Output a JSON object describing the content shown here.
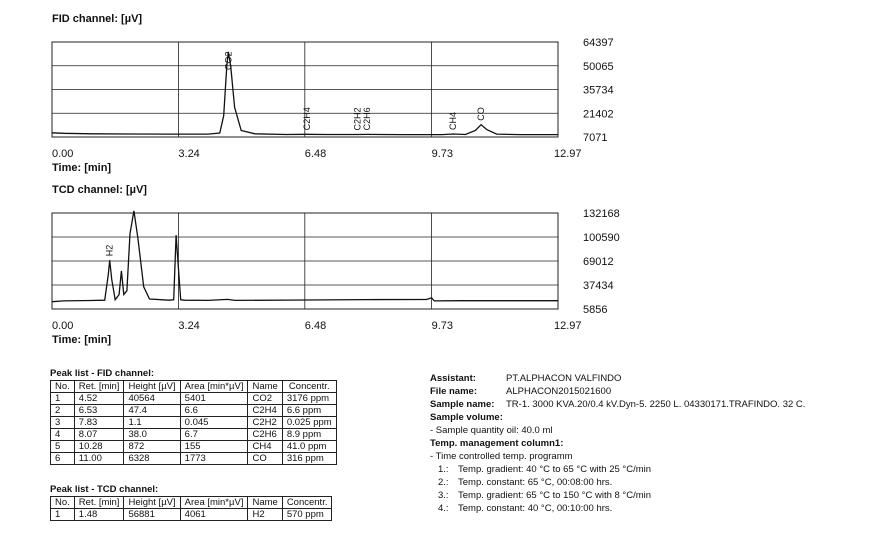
{
  "chart_data": [
    {
      "type": "line",
      "title": "FID channel:  [µV]",
      "x_label": "Time:  [min]",
      "color": "#111",
      "grid": true,
      "xlim": [
        0,
        12.97
      ],
      "xticks": [
        {
          "value": 0,
          "label": "0.00"
        },
        3.24,
        6.48,
        9.73,
        12.97
      ],
      "ylim": [
        7071,
        64397
      ],
      "yticks": [
        64397,
        50065,
        35734,
        21402,
        7071
      ],
      "x": [
        0,
        0.3,
        1,
        2,
        3,
        4.0,
        4.3,
        4.4,
        4.48,
        4.52,
        4.58,
        4.68,
        4.85,
        5.2,
        6,
        6.53,
        7,
        7.83,
        8.07,
        9,
        10.0,
        10.28,
        10.6,
        10.85,
        11.0,
        11.15,
        11.4,
        12,
        12.97
      ],
      "values": [
        9600,
        9300,
        9000,
        8900,
        8800,
        8800,
        9500,
        20000,
        50000,
        58500,
        50000,
        25000,
        11000,
        9000,
        8600,
        8700,
        8600,
        8600,
        8650,
        8500,
        8500,
        8900,
        8600,
        11000,
        14500,
        11500,
        8800,
        8500,
        8500
      ],
      "annotations": [
        {
          "x": 4.52,
          "text": "CO2"
        },
        {
          "x": 6.53,
          "text": "C2H4"
        },
        {
          "x": 7.83,
          "text": "C2H2"
        },
        {
          "x": 8.07,
          "text": "C2H6"
        },
        {
          "x": 10.28,
          "text": "CH4"
        },
        {
          "x": 11.0,
          "text": "CO"
        }
      ]
    },
    {
      "type": "line",
      "title": "TCD channel:  [µV]",
      "x_label": "Time:  [min]",
      "color": "#111",
      "grid": true,
      "xlim": [
        0,
        12.97
      ],
      "xticks": [
        {
          "value": 0,
          "label": "0.00"
        },
        3.24,
        6.48,
        9.73,
        12.97
      ],
      "ylim": [
        5856,
        132168
      ],
      "yticks": [
        132168,
        100590,
        69012,
        37434,
        5856
      ],
      "x": [
        0,
        0.3,
        1.0,
        1.35,
        1.44,
        1.48,
        1.53,
        1.62,
        1.72,
        1.78,
        1.84,
        1.92,
        2.0,
        2.1,
        2.2,
        2.35,
        2.5,
        3.0,
        3.12,
        3.18,
        3.24,
        3.3,
        3.4,
        4.0,
        4.5,
        4.7,
        6,
        8,
        9.6,
        9.73,
        9.8,
        10.5,
        12.97
      ],
      "values": [
        15500,
        16500,
        17000,
        17500,
        50000,
        70000,
        45000,
        18000,
        25000,
        56000,
        25000,
        30000,
        105000,
        135000,
        100000,
        35000,
        19000,
        17500,
        18000,
        103000,
        60000,
        18000,
        17500,
        17200,
        18500,
        17200,
        17600,
        18200,
        18300,
        20500,
        16500,
        16800,
        16800
      ],
      "annotations": [
        {
          "x": 1.48,
          "text": "H2"
        }
      ]
    }
  ],
  "fid_table": {
    "caption": "Peak list - FID channel:",
    "header": [
      "No.",
      "Ret. [min]",
      "Height [µV]",
      "Area [min*µV]",
      "Name",
      "Concentr."
    ],
    "rows": [
      [
        "1",
        "4.52",
        "40564",
        "5401",
        "CO2",
        "3176 ppm"
      ],
      [
        "2",
        "6.53",
        "47.4",
        "6.6",
        "C2H4",
        "6.6 ppm"
      ],
      [
        "3",
        "7.83",
        "1.1",
        "0.045",
        "C2H2",
        "0.025 ppm"
      ],
      [
        "4",
        "8.07",
        "38.0",
        "6.7",
        "C2H6",
        "8.9 ppm"
      ],
      [
        "5",
        "10.28",
        "872",
        "155",
        "CH4",
        "41.0 ppm"
      ],
      [
        "6",
        "11.00",
        "6328",
        "1773",
        "CO",
        "316 ppm"
      ]
    ]
  },
  "tcd_table": {
    "caption": "Peak list - TCD channel:",
    "header": [
      "No.",
      "Ret. [min]",
      "Height [µV]",
      "Area [min*µV]",
      "Name",
      "Concentr."
    ],
    "rows": [
      [
        "1",
        "1.48",
        "56881",
        "4061",
        "H2",
        "570 ppm"
      ]
    ]
  },
  "info": {
    "fields": [
      [
        "Assistant:",
        "PT.ALPHACON VALFINDO"
      ],
      [
        "File name:",
        "ALPHACON2015021600"
      ],
      [
        "Sample name:",
        "TR-1. 3000 KVA.20/0.4 kV.Dyn-5. 2250 L. 04330171.TRAFINDO.  32 C."
      ]
    ],
    "volume_heading": "Sample volume:",
    "volume_line": "-  Sample quantity oil:    40.0 ml",
    "temp_heading": "Temp. management column1:",
    "temp_line": "-  Time controlled temp. programm",
    "steps": [
      [
        "1.:",
        "Temp. gradient: 40 °C to 65 °C with 25 °C/min"
      ],
      [
        "2.:",
        "Temp. constant: 65 °C, 00:08:00 hrs."
      ],
      [
        "3.:",
        "Temp. gradient: 65 °C to 150 °C with 8 °C/min"
      ],
      [
        "4.:",
        "Temp. constant: 40 °C, 00:10:00 hrs."
      ]
    ]
  }
}
